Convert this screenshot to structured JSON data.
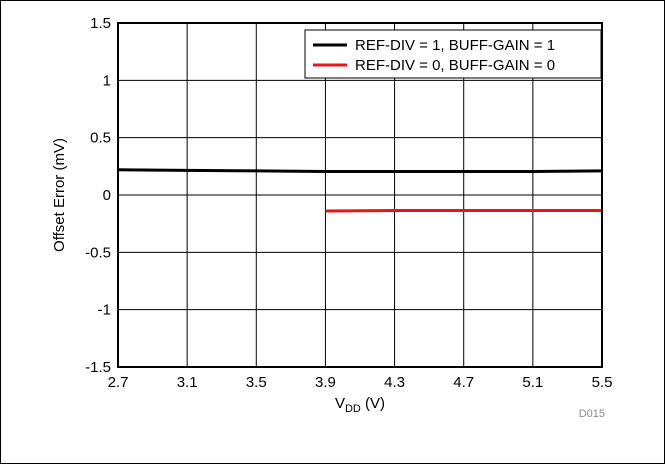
{
  "chart_data": {
    "type": "line",
    "xlabel": "V",
    "xlabel_sub": "DD",
    "xlabel_unit": " (V)",
    "ylabel": "Offset Error (mV)",
    "xlim": [
      2.7,
      5.5
    ],
    "ylim": [
      -1.5,
      1.5
    ],
    "xticks": [
      "2.7",
      "3.1",
      "3.5",
      "3.9",
      "4.3",
      "4.7",
      "5.1",
      "5.5"
    ],
    "yticks": [
      "1.5",
      "1",
      "0.5",
      "0",
      "-0.5",
      "-1",
      "-1.5"
    ],
    "grid": true,
    "legend_position": "top-right",
    "series": [
      {
        "name": "REF-DIV = 1, BUFF-GAIN = 1",
        "color": "#000000",
        "x": [
          2.7,
          3.1,
          3.5,
          3.9,
          4.3,
          4.7,
          5.1,
          5.5
        ],
        "y": [
          0.22,
          0.215,
          0.21,
          0.205,
          0.205,
          0.205,
          0.205,
          0.21
        ]
      },
      {
        "name": "REF-DIV = 0, BUFF-GAIN = 0",
        "color": "#e8141c",
        "x": [
          3.9,
          4.3,
          4.7,
          5.1,
          5.5
        ],
        "y": [
          -0.14,
          -0.135,
          -0.135,
          -0.135,
          -0.135
        ]
      }
    ],
    "annotation": "D015"
  }
}
